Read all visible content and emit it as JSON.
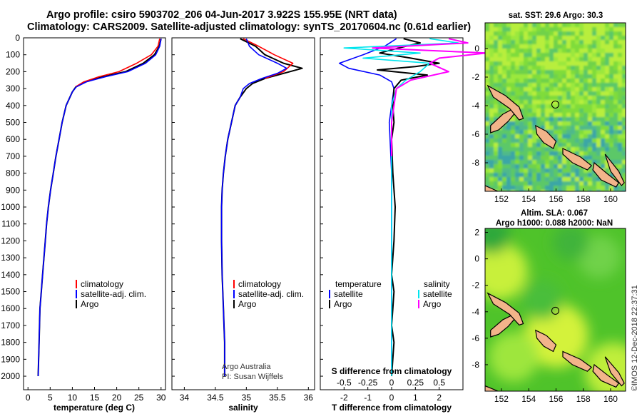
{
  "titles": {
    "line1": "Argo profile: csiro 5903702_206 04-Jun-2017 3.922S 155.95E (NRT data)",
    "line2": "Climatology: CARS2009. Satellite-adjusted climatology: synTS_20170604.nc (0.61d earlier)"
  },
  "colors": {
    "argo": "#000000",
    "climatology": "#ff0000",
    "satellite": "#0000ff",
    "sat_t": "#0000ff",
    "sat_s": "#00e5ee",
    "argo_s_diff": "#ff00ff",
    "land": "#f2b48a"
  },
  "depth_ticks": [
    "0",
    "100",
    "200",
    "300",
    "400",
    "500",
    "600",
    "700",
    "800",
    "900",
    "1000",
    "1100",
    "1200",
    "1300",
    "1400",
    "1500",
    "1600",
    "1700",
    "1800",
    "1900",
    "2000"
  ],
  "chart_data": [
    {
      "type": "line",
      "xlabel": "temperature (deg C)",
      "ylabel": "",
      "xlim": [
        -1,
        31
      ],
      "ylim": [
        2080,
        0
      ],
      "xticks": [
        "0",
        "5",
        "10",
        "15",
        "20",
        "25",
        "30"
      ],
      "legend": {
        "placement": "bottom",
        "entries": [
          "climatology",
          "satellite-adj. clim.",
          "Argo"
        ]
      },
      "series": [
        {
          "name": "Argo",
          "x": [
            30.0,
            29.6,
            28.5,
            26.0,
            22.0,
            17.0,
            13.0,
            10.8,
            10.0,
            8.6,
            7.7,
            7.0,
            6.3,
            5.7,
            5.1,
            4.6,
            4.2,
            3.9,
            3.6,
            3.3,
            3.0,
            2.7,
            2.5,
            2.3
          ],
          "y": [
            5,
            50,
            100,
            150,
            200,
            230,
            260,
            290,
            320,
            400,
            500,
            600,
            700,
            800,
            900,
            1000,
            1100,
            1200,
            1300,
            1400,
            1500,
            1600,
            1800,
            2000
          ]
        },
        {
          "name": "climatology",
          "x": [
            29.7,
            29.3,
            27.8,
            24.5,
            20.5,
            16.0,
            12.6,
            10.7
          ],
          "y": [
            5,
            50,
            100,
            150,
            200,
            230,
            260,
            290
          ]
        },
        {
          "name": "satellite-adj. clim.",
          "x": [
            30.0,
            29.7,
            28.8,
            26.5,
            22.5,
            17.5,
            13.2,
            10.9,
            10.0,
            8.6,
            7.7,
            7.0,
            6.3,
            5.7,
            5.1,
            4.6,
            4.2,
            3.9,
            3.6,
            3.3,
            3.0,
            2.7,
            2.5,
            2.3
          ],
          "y": [
            5,
            50,
            100,
            150,
            200,
            230,
            260,
            290,
            320,
            400,
            500,
            600,
            700,
            800,
            900,
            1000,
            1100,
            1200,
            1300,
            1400,
            1500,
            1600,
            1800,
            2000
          ]
        }
      ]
    },
    {
      "type": "line",
      "xlabel": "salinity",
      "ylabel": "",
      "xlim": [
        33.8,
        36.1
      ],
      "ylim": [
        2080,
        0
      ],
      "xticks": [
        "34",
        "34.5",
        "35",
        "35.5",
        "36"
      ],
      "legend": {
        "placement": "bottom",
        "entries": [
          "climatology",
          "satellite-adj. clim.",
          "Argo"
        ]
      },
      "notes": [
        "Argo Australia",
        "PI: Susan Wijffels"
      ],
      "series": [
        {
          "name": "Argo",
          "x": [
            34.9,
            35.15,
            35.3,
            35.6,
            35.9,
            35.6,
            35.3,
            35.1,
            35.0,
            34.9,
            34.82,
            34.76,
            34.7,
            34.66,
            34.63,
            34.61,
            34.6,
            34.6,
            34.61,
            34.62,
            34.63,
            34.64,
            34.65,
            34.65
          ],
          "y": [
            5,
            50,
            100,
            150,
            180,
            210,
            240,
            270,
            300,
            350,
            400,
            500,
            600,
            700,
            800,
            900,
            1000,
            1200,
            1400,
            1500,
            1600,
            1700,
            1800,
            2000
          ]
        },
        {
          "name": "climatology",
          "x": [
            34.95,
            35.2,
            35.45,
            35.75,
            35.6,
            35.3
          ],
          "y": [
            5,
            50,
            100,
            150,
            200,
            240
          ]
        },
        {
          "name": "satellite-adj. clim.",
          "x": [
            35.0,
            35.05,
            35.2,
            35.5,
            35.65,
            35.5,
            35.25,
            35.05,
            34.95,
            34.9,
            34.82,
            34.76,
            34.7,
            34.66,
            34.63,
            34.61,
            34.6,
            34.6,
            34.61,
            34.62,
            34.63,
            34.64,
            34.65,
            34.65
          ],
          "y": [
            5,
            50,
            100,
            150,
            180,
            210,
            240,
            270,
            300,
            350,
            400,
            500,
            600,
            700,
            800,
            900,
            1000,
            1200,
            1400,
            1500,
            1600,
            1700,
            1800,
            2000
          ]
        }
      ]
    },
    {
      "type": "line",
      "xlabel": "T difference from climatology",
      "xlabel_top": "S difference from climatology",
      "ylabel": "",
      "xlim": [
        -3,
        3
      ],
      "ylim": [
        2080,
        0
      ],
      "xticks": [
        "-2",
        "-1",
        "0",
        "1",
        "2"
      ],
      "xticks_top": [
        "-0.5",
        "-0.25",
        "0",
        "0.25",
        "0.5"
      ],
      "legend": {
        "placement": "bottom",
        "temperature_entries": [
          "satellite",
          "Argo"
        ],
        "salinity_entries": [
          "satellite",
          "Argo"
        ],
        "temperature_header": "temperature",
        "salinity_header": "salinity"
      },
      "series": [
        {
          "name": "satellite (temperature)",
          "x": [
            0.2,
            -0.3,
            -1.2,
            -2.2,
            -1.8,
            -0.5,
            0.0,
            0.1,
            0.0,
            -0.1,
            0.0,
            0.0,
            0.0,
            0.0,
            0.0
          ],
          "y": [
            5,
            50,
            100,
            150,
            180,
            220,
            260,
            300,
            400,
            500,
            800,
            1000,
            1400,
            1700,
            2000
          ]
        },
        {
          "name": "Argo (temperature)",
          "x": [
            0.5,
            1.2,
            0.3,
            -0.5,
            0.8,
            2.0,
            1.0,
            -0.6,
            1.5,
            0.4,
            0.1,
            0.05,
            0.1,
            0.0,
            0.05,
            0.15,
            0.1,
            0.0,
            0.1,
            0.05,
            0.0,
            0.1,
            0.0
          ],
          "y": [
            5,
            30,
            60,
            90,
            120,
            150,
            170,
            190,
            220,
            250,
            300,
            400,
            500,
            600,
            800,
            1000,
            1200,
            1400,
            1500,
            1600,
            1700,
            1800,
            2000
          ]
        },
        {
          "name": "satellite (salinity)",
          "x": [
            0.4,
            0.7,
            -0.5,
            0.3,
            -0.3,
            0.4,
            0.3,
            0.15,
            0.05,
            0.0,
            0.0,
            0.0,
            0.0,
            0.0
          ],
          "y": [
            5,
            30,
            60,
            90,
            120,
            150,
            200,
            250,
            300,
            400,
            600,
            1000,
            1500,
            2000
          ]
        },
        {
          "name": "Argo (salinity)",
          "x": [
            0.6,
            0.8,
            -0.2,
            1.0,
            0.5,
            0.4,
            0.6,
            0.2,
            0.05,
            0.0,
            0.0
          ],
          "y": [
            5,
            30,
            60,
            90,
            120,
            150,
            200,
            250,
            300,
            500,
            700
          ]
        }
      ]
    }
  ],
  "map_top": {
    "title": "sat. SST: 29.6 Argo: 30.3",
    "yticks": [
      "0",
      "-2",
      "-4",
      "-6",
      "-8"
    ],
    "xticks": [
      "152",
      "154",
      "156",
      "158",
      "160"
    ],
    "marker": {
      "lon": 155.95,
      "lat": -3.922
    }
  },
  "map_bottom": {
    "title_line1": "Altim. SLA: 0.067",
    "title_line2": "Argo h1000: 0.088 h2000: NaN",
    "yticks": [
      "2",
      "0",
      "-2",
      "-4",
      "-6",
      "-8"
    ],
    "xticks": [
      "152",
      "154",
      "156",
      "158",
      "160"
    ],
    "marker": {
      "lon": 155.95,
      "lat": -3.922
    }
  },
  "side_stamp": "©IMOS 12-Dec-2018 22:37:31"
}
